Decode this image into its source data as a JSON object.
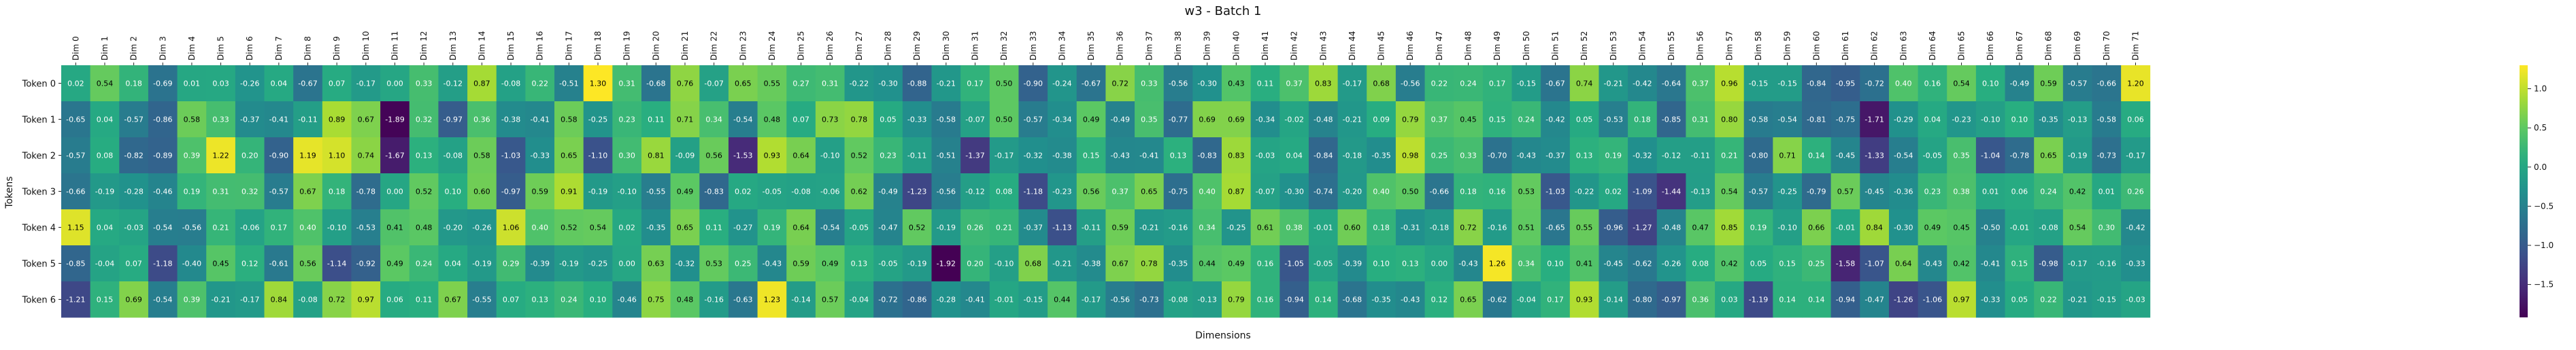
{
  "chart_data": {
    "type": "heatmap",
    "title": "w3 - Batch 1",
    "xlabel": "Dimensions",
    "ylabel": "Tokens",
    "rows": [
      "Token 0",
      "Token 1",
      "Token 2",
      "Token 3",
      "Token 4",
      "Token 5",
      "Token 6"
    ],
    "columns": [
      "Dim 0",
      "Dim 1",
      "Dim 2",
      "Dim 3",
      "Dim 4",
      "Dim 5",
      "Dim 6",
      "Dim 7",
      "Dim 8",
      "Dim 9",
      "Dim 10",
      "Dim 11",
      "Dim 12",
      "Dim 13",
      "Dim 14",
      "Dim 15",
      "Dim 16",
      "Dim 17",
      "Dim 18",
      "Dim 19",
      "Dim 20",
      "Dim 21",
      "Dim 22",
      "Dim 23",
      "Dim 24",
      "Dim 25",
      "Dim 26",
      "Dim 27",
      "Dim 28",
      "Dim 29",
      "Dim 30",
      "Dim 31",
      "Dim 32",
      "Dim 33",
      "Dim 34",
      "Dim 35",
      "Dim 36",
      "Dim 37",
      "Dim 38",
      "Dim 39",
      "Dim 40",
      "Dim 41",
      "Dim 42",
      "Dim 43",
      "Dim 44",
      "Dim 45",
      "Dim 46",
      "Dim 47",
      "Dim 48",
      "Dim 49",
      "Dim 50",
      "Dim 51",
      "Dim 52",
      "Dim 53",
      "Dim 54",
      "Dim 55",
      "Dim 56",
      "Dim 57",
      "Dim 58",
      "Dim 59",
      "Dim 60",
      "Dim 61",
      "Dim 62",
      "Dim 63",
      "Dim 64",
      "Dim 65",
      "Dim 66",
      "Dim 67",
      "Dim 68",
      "Dim 69",
      "Dim 70",
      "Dim 71"
    ],
    "values": [
      [
        0.02,
        0.54,
        0.18,
        -0.69,
        0.01,
        0.03,
        -0.26,
        0.04,
        -0.67,
        0.07,
        -0.17,
        0.0,
        0.33,
        -0.12,
        0.87,
        -0.08,
        0.22,
        -0.51,
        1.3,
        0.31,
        -0.68,
        0.76,
        -0.07,
        0.65,
        0.55,
        0.27,
        0.31,
        -0.22,
        -0.3,
        -0.88,
        -0.21,
        0.17,
        0.5,
        -0.9,
        -0.24,
        -0.67,
        0.72,
        0.33,
        -0.56,
        -0.3,
        0.43,
        0.11,
        0.37,
        0.83,
        -0.17,
        0.68,
        -0.56,
        0.22,
        0.24,
        0.17,
        -0.15,
        -0.67,
        0.74,
        -0.21,
        -0.42,
        -0.64,
        0.37,
        0.96,
        -0.15,
        -0.15,
        -0.84,
        -0.95,
        -0.72,
        0.4,
        0.16,
        0.54,
        0.1,
        -0.49,
        0.59,
        -0.57,
        -0.66,
        1.2
      ],
      [
        -0.65,
        0.04,
        -0.57,
        -0.86,
        0.58,
        0.33,
        -0.37,
        -0.41,
        -0.11,
        0.89,
        0.67,
        -1.89,
        0.32,
        -0.97,
        0.36,
        -0.38,
        -0.41,
        0.58,
        -0.25,
        0.23,
        0.11,
        0.71,
        0.34,
        -0.54,
        0.48,
        0.07,
        0.73,
        0.78,
        0.05,
        -0.33,
        -0.58,
        -0.07,
        0.5,
        -0.57,
        -0.34,
        0.49,
        -0.49,
        0.35,
        -0.77,
        0.69,
        0.69,
        -0.34,
        -0.02,
        -0.48,
        -0.21,
        0.09,
        0.79,
        0.37,
        0.45,
        0.15,
        0.24,
        -0.42,
        0.05,
        -0.53,
        0.18,
        -0.85,
        0.31,
        0.8,
        -0.58,
        -0.54,
        -0.81,
        -0.75,
        -1.71,
        -0.29,
        0.04,
        -0.23,
        -0.1,
        0.1,
        -0.35,
        -0.13,
        -0.58,
        0.06
      ],
      [
        -0.57,
        0.08,
        -0.82,
        -0.89,
        0.39,
        1.22,
        0.2,
        -0.9,
        1.19,
        1.1,
        0.74,
        -1.67,
        0.13,
        -0.08,
        0.58,
        -1.03,
        -0.33,
        0.65,
        -1.1,
        0.3,
        0.81,
        -0.09,
        0.56,
        -1.53,
        0.93,
        0.64,
        -0.1,
        0.52,
        0.23,
        -0.11,
        -0.51,
        -1.37,
        -0.17,
        -0.32,
        -0.38,
        0.15,
        -0.43,
        -0.41,
        0.13,
        -0.83,
        0.83,
        -0.03,
        0.04,
        -0.84,
        -0.18,
        -0.35,
        0.98,
        0.25,
        0.33,
        -0.7,
        -0.43,
        -0.37,
        0.13,
        0.19,
        -0.32,
        -0.12,
        -0.11,
        0.21,
        -0.8,
        0.71,
        0.14,
        -0.45,
        -1.33,
        -0.54,
        -0.05,
        0.35,
        -1.04,
        -0.78,
        0.65,
        -0.19,
        -0.73,
        -0.17
      ],
      [
        -0.66,
        -0.19,
        -0.28,
        -0.46,
        0.19,
        0.31,
        0.32,
        -0.57,
        0.67,
        0.18,
        -0.78,
        0.0,
        0.52,
        0.1,
        0.6,
        -0.97,
        0.59,
        0.91,
        -0.19,
        -0.1,
        -0.55,
        0.49,
        -0.83,
        0.02,
        -0.05,
        -0.08,
        -0.06,
        0.62,
        -0.49,
        -1.23,
        -0.56,
        -0.12,
        0.08,
        -1.18,
        -0.23,
        0.56,
        0.37,
        0.65,
        -0.75,
        0.4,
        0.87,
        -0.07,
        -0.3,
        -0.74,
        -0.2,
        0.4,
        0.5,
        -0.66,
        0.18,
        0.16,
        0.53,
        -1.03,
        -0.22,
        0.02,
        -1.09,
        -1.44,
        -0.13,
        0.54,
        -0.57,
        -0.25,
        -0.79,
        0.57,
        -0.45,
        -0.36,
        0.23,
        0.38,
        0.01,
        0.06,
        0.24,
        0.42,
        0.01,
        0.26
      ],
      [
        1.15,
        0.04,
        -0.03,
        -0.54,
        -0.56,
        0.21,
        -0.06,
        0.17,
        0.4,
        -0.1,
        -0.53,
        0.41,
        0.48,
        -0.2,
        -0.26,
        1.06,
        0.4,
        0.52,
        0.54,
        0.02,
        -0.35,
        0.65,
        0.11,
        -0.27,
        0.19,
        0.64,
        -0.54,
        -0.05,
        -0.47,
        0.52,
        -0.19,
        0.26,
        0.21,
        -0.37,
        -1.13,
        -0.11,
        0.59,
        -0.21,
        -0.16,
        0.34,
        -0.25,
        0.61,
        0.38,
        -0.01,
        0.6,
        0.18,
        -0.31,
        -0.18,
        0.72,
        -0.16,
        0.51,
        -0.65,
        0.55,
        -0.96,
        -1.27,
        -0.48,
        0.47,
        0.85,
        0.19,
        -0.1,
        0.66,
        -0.01,
        0.84,
        -0.3,
        0.49,
        0.45,
        -0.5,
        -0.01,
        -0.08,
        0.54,
        0.3,
        -0.42
      ],
      [
        -0.85,
        -0.04,
        0.07,
        -1.18,
        -0.4,
        0.45,
        0.12,
        -0.61,
        0.56,
        -1.14,
        -0.92,
        0.49,
        0.24,
        0.04,
        -0.19,
        0.29,
        -0.39,
        -0.19,
        -0.25,
        0.0,
        0.63,
        -0.32,
        0.53,
        0.25,
        -0.43,
        0.59,
        0.49,
        0.13,
        -0.05,
        -0.19,
        -1.92,
        0.2,
        -0.1,
        0.68,
        -0.21,
        -0.38,
        0.67,
        0.78,
        -0.35,
        0.44,
        0.49,
        0.16,
        -1.05,
        -0.05,
        -0.39,
        0.1,
        0.13,
        -0.0,
        -0.43,
        1.26,
        0.34,
        0.1,
        0.41,
        -0.45,
        -0.62,
        -0.26,
        0.08,
        0.42,
        0.05,
        0.15,
        0.25,
        -1.58,
        -1.07,
        0.64,
        -0.43,
        0.42,
        -0.41,
        0.15,
        -0.98,
        -0.17,
        -0.16,
        -0.33
      ],
      [
        -1.21,
        0.15,
        0.69,
        -0.54,
        0.39,
        -0.21,
        -0.17,
        0.84,
        -0.08,
        0.72,
        0.97,
        0.06,
        0.11,
        0.67,
        -0.55,
        0.07,
        0.13,
        0.24,
        0.1,
        -0.46,
        0.75,
        0.48,
        -0.16,
        -0.63,
        1.23,
        -0.14,
        0.57,
        -0.04,
        -0.72,
        -0.86,
        -0.28,
        -0.41,
        -0.01,
        -0.15,
        0.44,
        -0.17,
        -0.56,
        -0.73,
        -0.08,
        -0.13,
        0.79,
        0.16,
        -0.94,
        0.14,
        -0.68,
        -0.35,
        -0.43,
        0.12,
        0.65,
        -0.62,
        -0.04,
        0.17,
        0.93,
        -0.14,
        -0.8,
        -0.97,
        0.36,
        0.03,
        -1.19,
        0.14,
        0.14,
        -0.94,
        -0.47,
        -1.26,
        -1.06,
        0.97,
        -0.33,
        0.05,
        0.22,
        -0.21,
        -0.15,
        -0.03
      ]
    ],
    "vmin": -1.92,
    "vmax": 1.3,
    "colormap": "viridis",
    "colorbar_ticks": [
      -1.5,
      -1.0,
      -0.5,
      0.0,
      0.5,
      1.0
    ],
    "colorbar_tick_labels": [
      "−1.5",
      "−1.0",
      "−0.5",
      "0.0",
      "0.5",
      "1.0"
    ],
    "grid": false
  }
}
